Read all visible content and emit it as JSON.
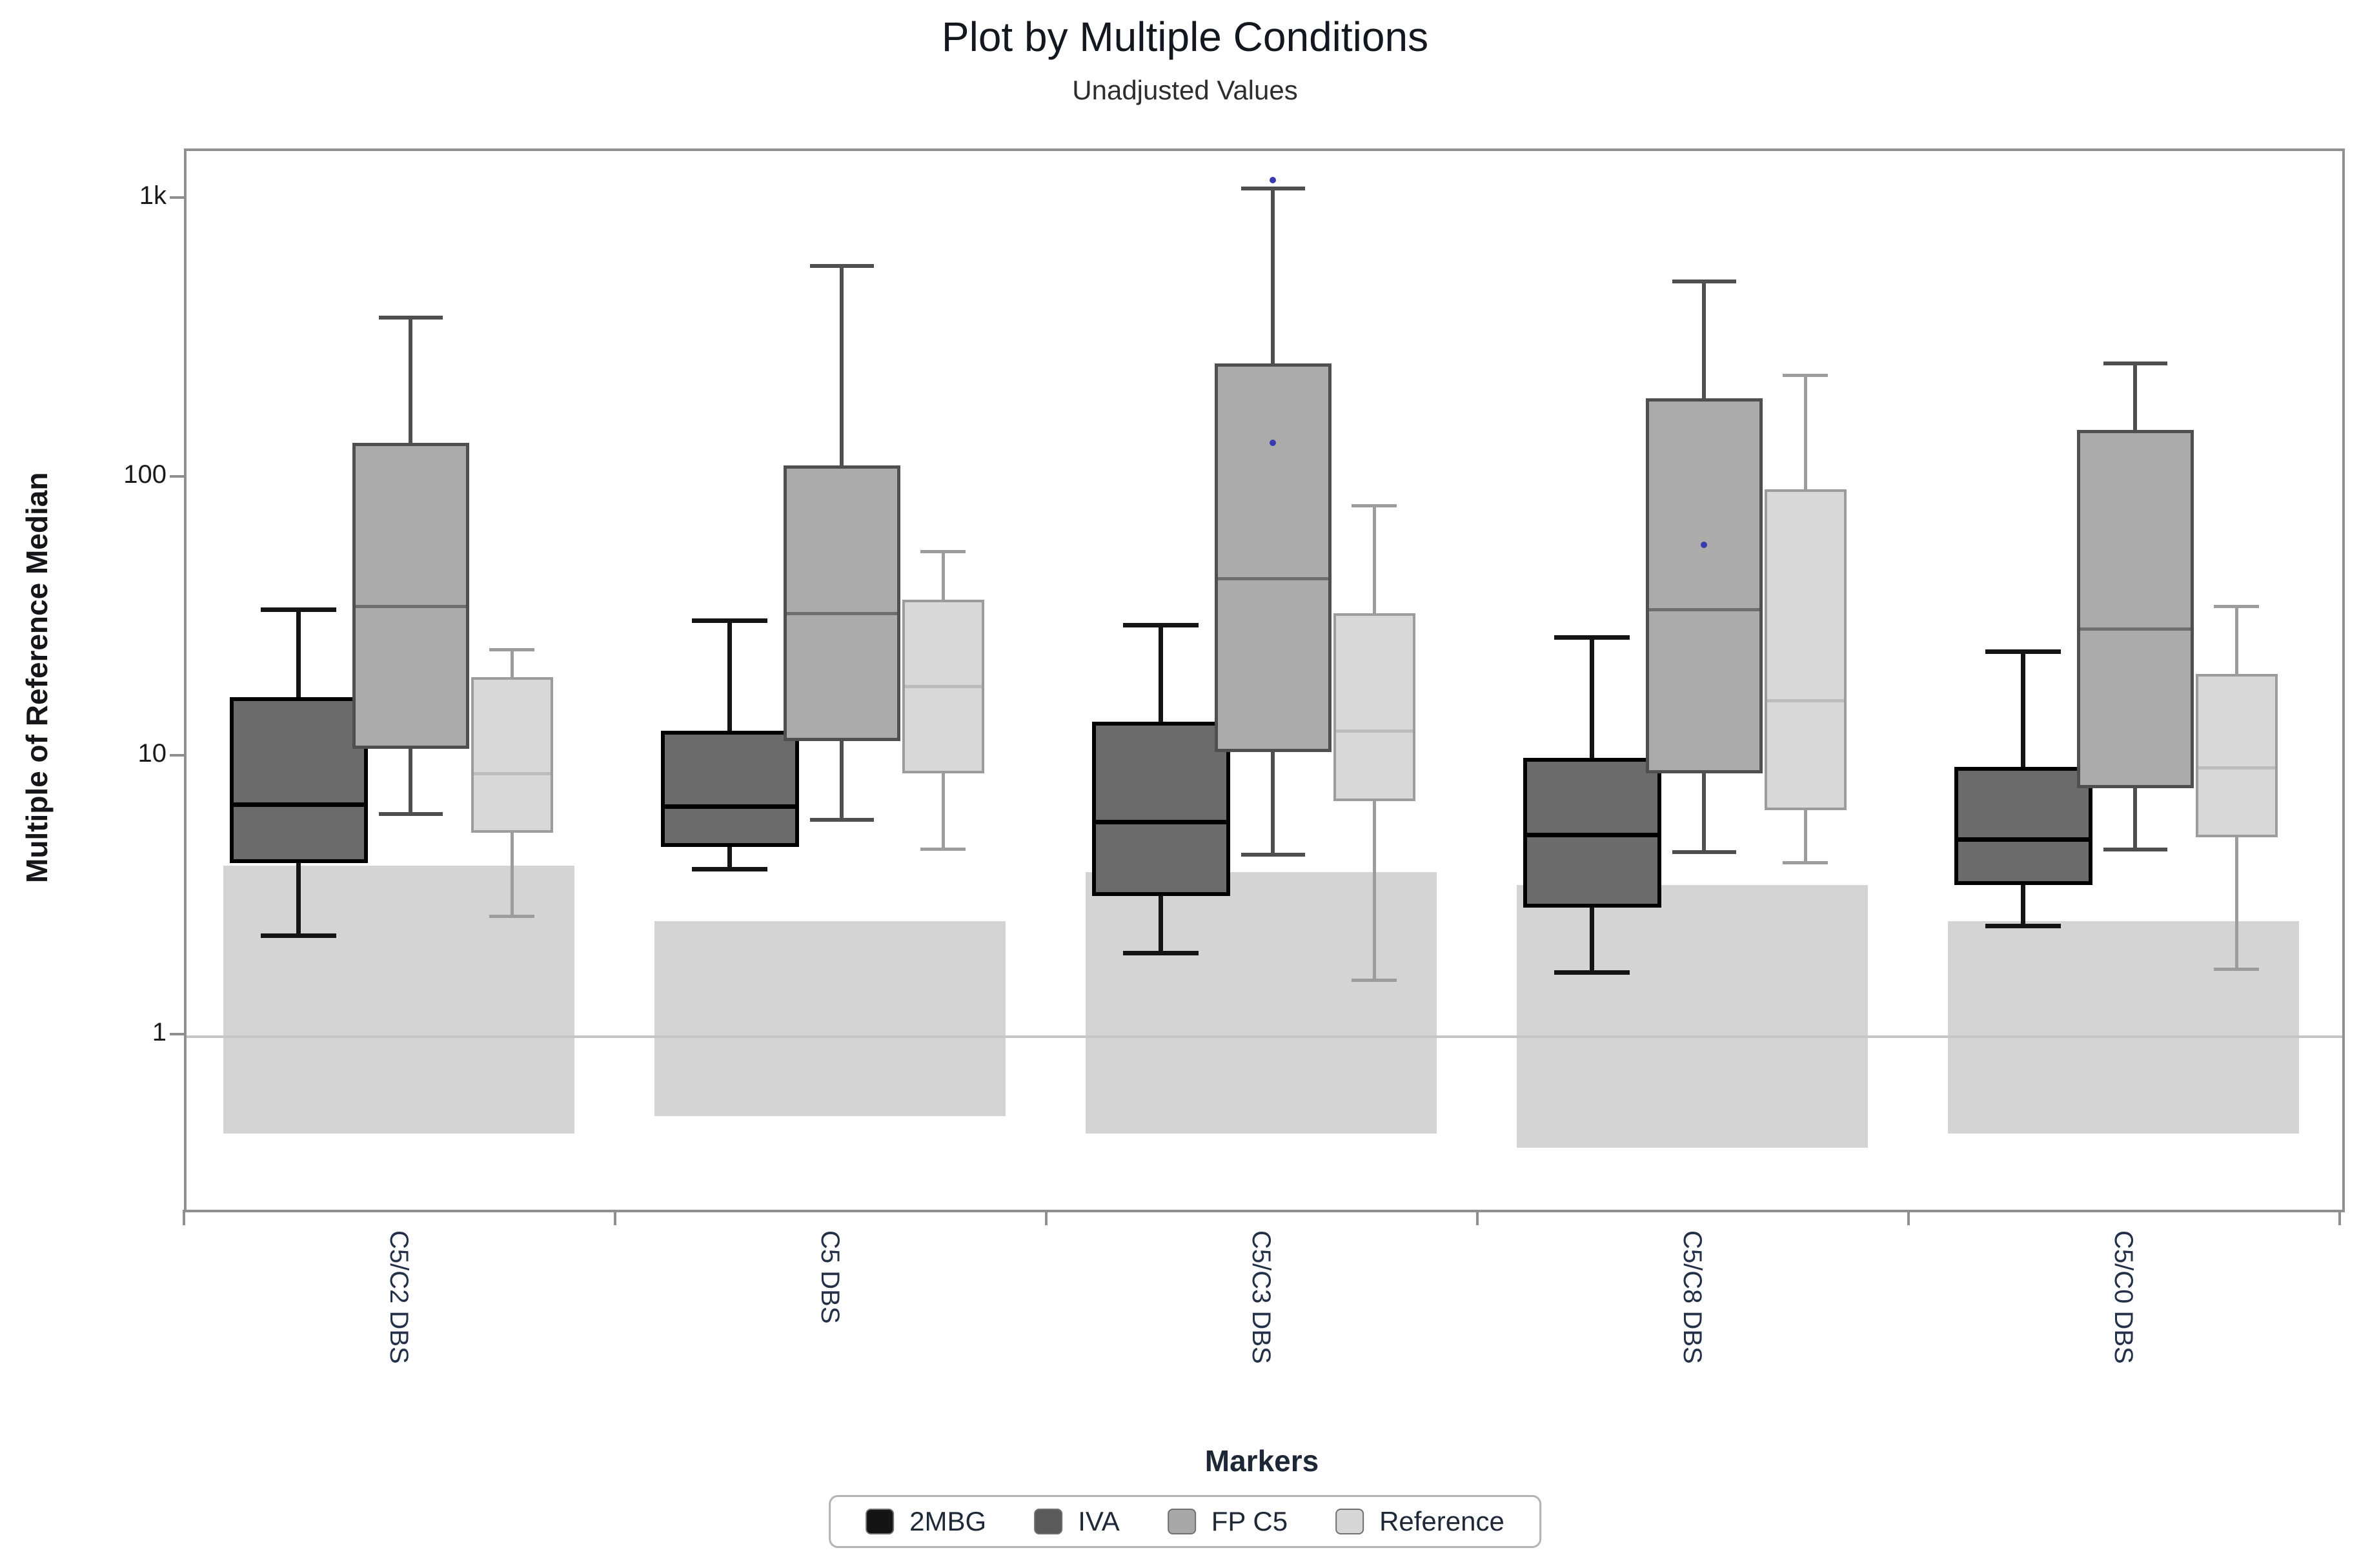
{
  "chart_data": {
    "type": "boxplot",
    "title": "Plot by Multiple Conditions",
    "subtitle": "Unadjusted Values",
    "xlabel": "Markers",
    "ylabel": "Multiple of Reference Median",
    "yscale": "log",
    "y_range": [
      0.24,
      1500
    ],
    "y_ticks": [
      {
        "value": 1000,
        "label": "1k"
      },
      {
        "value": 100,
        "label": "100"
      },
      {
        "value": 10,
        "label": "10"
      },
      {
        "value": 1,
        "label": "1"
      }
    ],
    "baseline": 1,
    "baseline_color": "#c6c6c6",
    "band_color": "#d4d4d4",
    "outlier_color": "#3b3bb0",
    "plot_border_color": "#8f8f8f",
    "legend": [
      {
        "label": "2MBG",
        "color": "#141414"
      },
      {
        "label": "IVA",
        "color": "#5a5a5a"
      },
      {
        "label": "FP C5",
        "color": "#a8a8a8"
      },
      {
        "label": "Reference",
        "color": "#d7d7d7"
      }
    ],
    "series_styles": {
      "2MBG/IVA": {
        "border": "#000000",
        "fill": "#6b6b6b",
        "median": "#000000",
        "whisker": "#141414",
        "lw": 7,
        "bw": 6,
        "mh": 7
      },
      "FP C5": {
        "border": "#4f4f4f",
        "fill": "#ababab",
        "median": "#6e6e6e",
        "whisker": "#4f4f4f",
        "lw": 6,
        "bw": 5,
        "mh": 5
      },
      "Reference": {
        "border": "#9c9c9c",
        "fill": "#d8d8d8",
        "median": "#bcbcbc",
        "whisker": "#9c9c9c",
        "lw": 5,
        "bw": 4,
        "mh": 5
      }
    },
    "groups": [
      {
        "label": "C5/C2 DBS",
        "band": {
          "low": 0.45,
          "high": 4.1
        },
        "boxes": [
          {
            "series": "2MBG/IVA",
            "low": 2.3,
            "q1": 4.2,
            "median": 6.8,
            "q3": 16.5,
            "high": 34,
            "outliers": []
          },
          {
            "series": "FP C5",
            "low": 6.3,
            "q1": 10.8,
            "median": 35,
            "q3": 135,
            "high": 380,
            "outliers": []
          },
          {
            "series": "Reference",
            "low": 2.7,
            "q1": 5.4,
            "median": 8.8,
            "q3": 19.5,
            "high": 24.5,
            "outliers": []
          }
        ]
      },
      {
        "label": "C5 DBS",
        "band": {
          "low": 0.52,
          "high": 2.6
        },
        "boxes": [
          {
            "series": "2MBG/IVA",
            "low": 4.0,
            "q1": 4.8,
            "median": 6.7,
            "q3": 12.5,
            "high": 31,
            "outliers": []
          },
          {
            "series": "FP C5",
            "low": 6.0,
            "q1": 11.5,
            "median": 33,
            "q3": 112,
            "high": 580,
            "outliers": []
          },
          {
            "series": "Reference",
            "low": 4.7,
            "q1": 8.8,
            "median": 18,
            "q3": 37,
            "high": 55,
            "outliers": []
          }
        ]
      },
      {
        "label": "C5/C3 DBS",
        "band": {
          "low": 0.45,
          "high": 3.9
        },
        "boxes": [
          {
            "series": "2MBG/IVA",
            "low": 2.0,
            "q1": 3.2,
            "median": 5.9,
            "q3": 13.5,
            "high": 30,
            "outliers": []
          },
          {
            "series": "FP C5",
            "low": 4.5,
            "q1": 10.5,
            "median": 44,
            "q3": 260,
            "high": 1100,
            "outliers": [
              135,
              1180
            ]
          },
          {
            "series": "Reference",
            "low": 1.6,
            "q1": 7.0,
            "median": 12.5,
            "q3": 33,
            "high": 80,
            "outliers": []
          }
        ]
      },
      {
        "label": "C5/C8 DBS",
        "band": {
          "low": 0.4,
          "high": 3.5
        },
        "boxes": [
          {
            "series": "2MBG/IVA",
            "low": 1.7,
            "q1": 2.9,
            "median": 5.3,
            "q3": 10,
            "high": 27,
            "outliers": []
          },
          {
            "series": "FP C5",
            "low": 4.6,
            "q1": 8.8,
            "median": 34,
            "q3": 195,
            "high": 510,
            "outliers": [
              58
            ]
          },
          {
            "series": "Reference",
            "low": 4.2,
            "q1": 6.5,
            "median": 16,
            "q3": 92,
            "high": 235,
            "outliers": []
          }
        ]
      },
      {
        "label": "C5/C0 DBS",
        "band": {
          "low": 0.45,
          "high": 2.6
        },
        "boxes": [
          {
            "series": "2MBG/IVA",
            "low": 2.5,
            "q1": 3.5,
            "median": 5.1,
            "q3": 9.3,
            "high": 24,
            "outliers": []
          },
          {
            "series": "FP C5",
            "low": 4.7,
            "q1": 7.8,
            "median": 29,
            "q3": 150,
            "high": 260,
            "outliers": []
          },
          {
            "series": "Reference",
            "low": 1.75,
            "q1": 5.2,
            "median": 9.2,
            "q3": 20,
            "high": 35,
            "outliers": []
          }
        ]
      }
    ]
  }
}
